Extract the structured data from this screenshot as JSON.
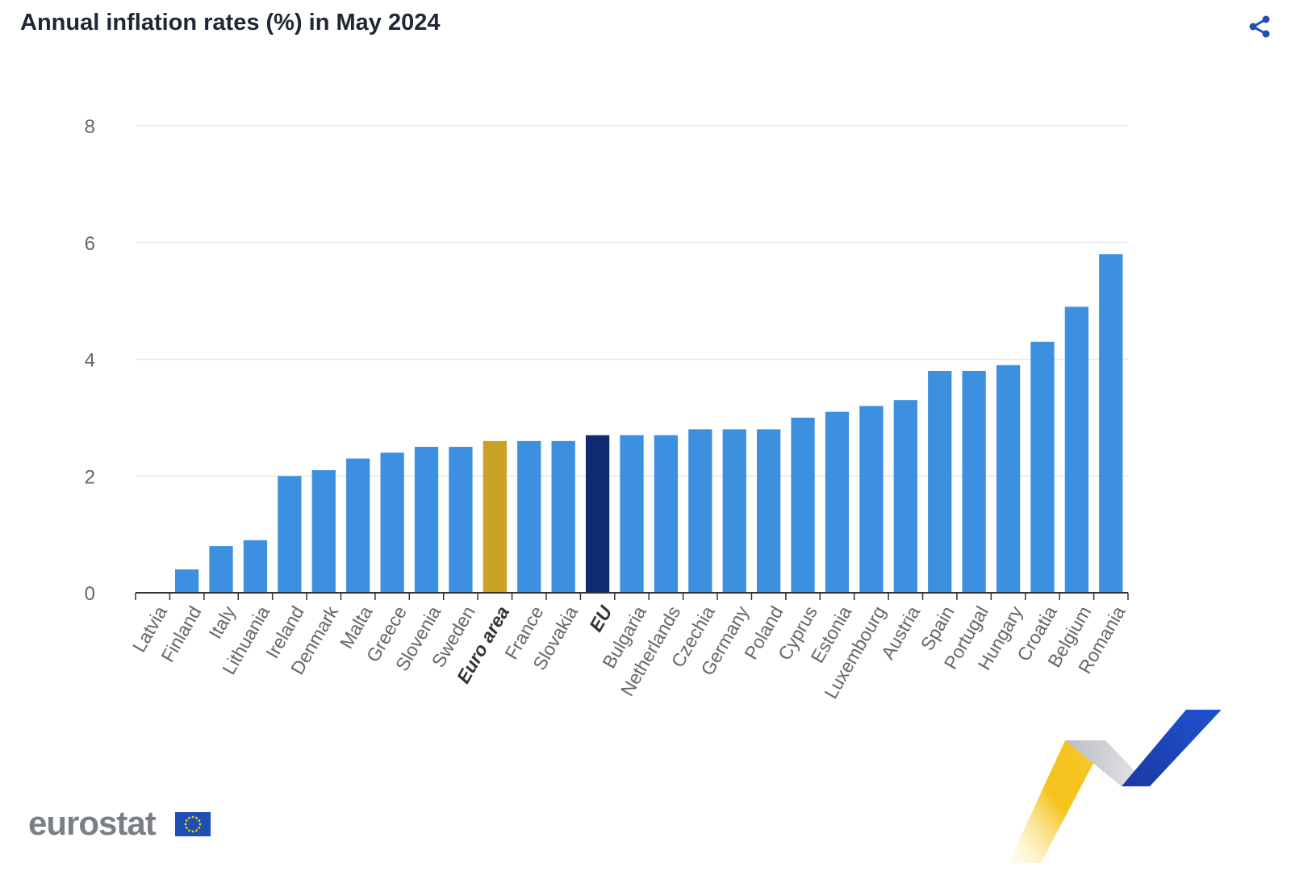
{
  "header": {
    "title": "Annual inflation rates (%) in May 2024",
    "share_icon": "share-icon"
  },
  "footer": {
    "logo_text": "eurostat",
    "logo_icon": "eu-flag-icon",
    "decoration_icon": "eurostat-ribbon-icon"
  },
  "colors": {
    "bar": "#3d8fe0",
    "euro_area": "#c9a127",
    "eu": "#0e2b72",
    "grid": "#e3e8ee",
    "axis_text": "#666666"
  },
  "chart_data": {
    "type": "bar",
    "title": "Annual inflation rates (%) in May 2024",
    "xlabel": "",
    "ylabel": "",
    "ylim": [
      0,
      8
    ],
    "yticks": [
      0,
      2,
      4,
      6,
      8
    ],
    "grid": true,
    "categories": [
      "Latvia",
      "Finland",
      "Italy",
      "Lithuania",
      "Ireland",
      "Denmark",
      "Malta",
      "Greece",
      "Slovenia",
      "Sweden",
      "Euro area",
      "France",
      "Slovakia",
      "EU",
      "Bulgaria",
      "Netherlands",
      "Czechia",
      "Germany",
      "Poland",
      "Cyprus",
      "Estonia",
      "Luxembourg",
      "Austria",
      "Spain",
      "Portugal",
      "Hungary",
      "Croatia",
      "Belgium",
      "Romania"
    ],
    "values": [
      0.0,
      0.4,
      0.8,
      0.9,
      2.0,
      2.1,
      2.3,
      2.4,
      2.5,
      2.5,
      2.6,
      2.6,
      2.6,
      2.7,
      2.7,
      2.7,
      2.8,
      2.8,
      2.8,
      3.0,
      3.1,
      3.2,
      3.3,
      3.8,
      3.8,
      3.9,
      4.3,
      4.9,
      5.8
    ],
    "highlight": {
      "Euro area": "euro_area",
      "EU": "eu"
    },
    "bold_categories": [
      "Euro area",
      "EU"
    ]
  }
}
